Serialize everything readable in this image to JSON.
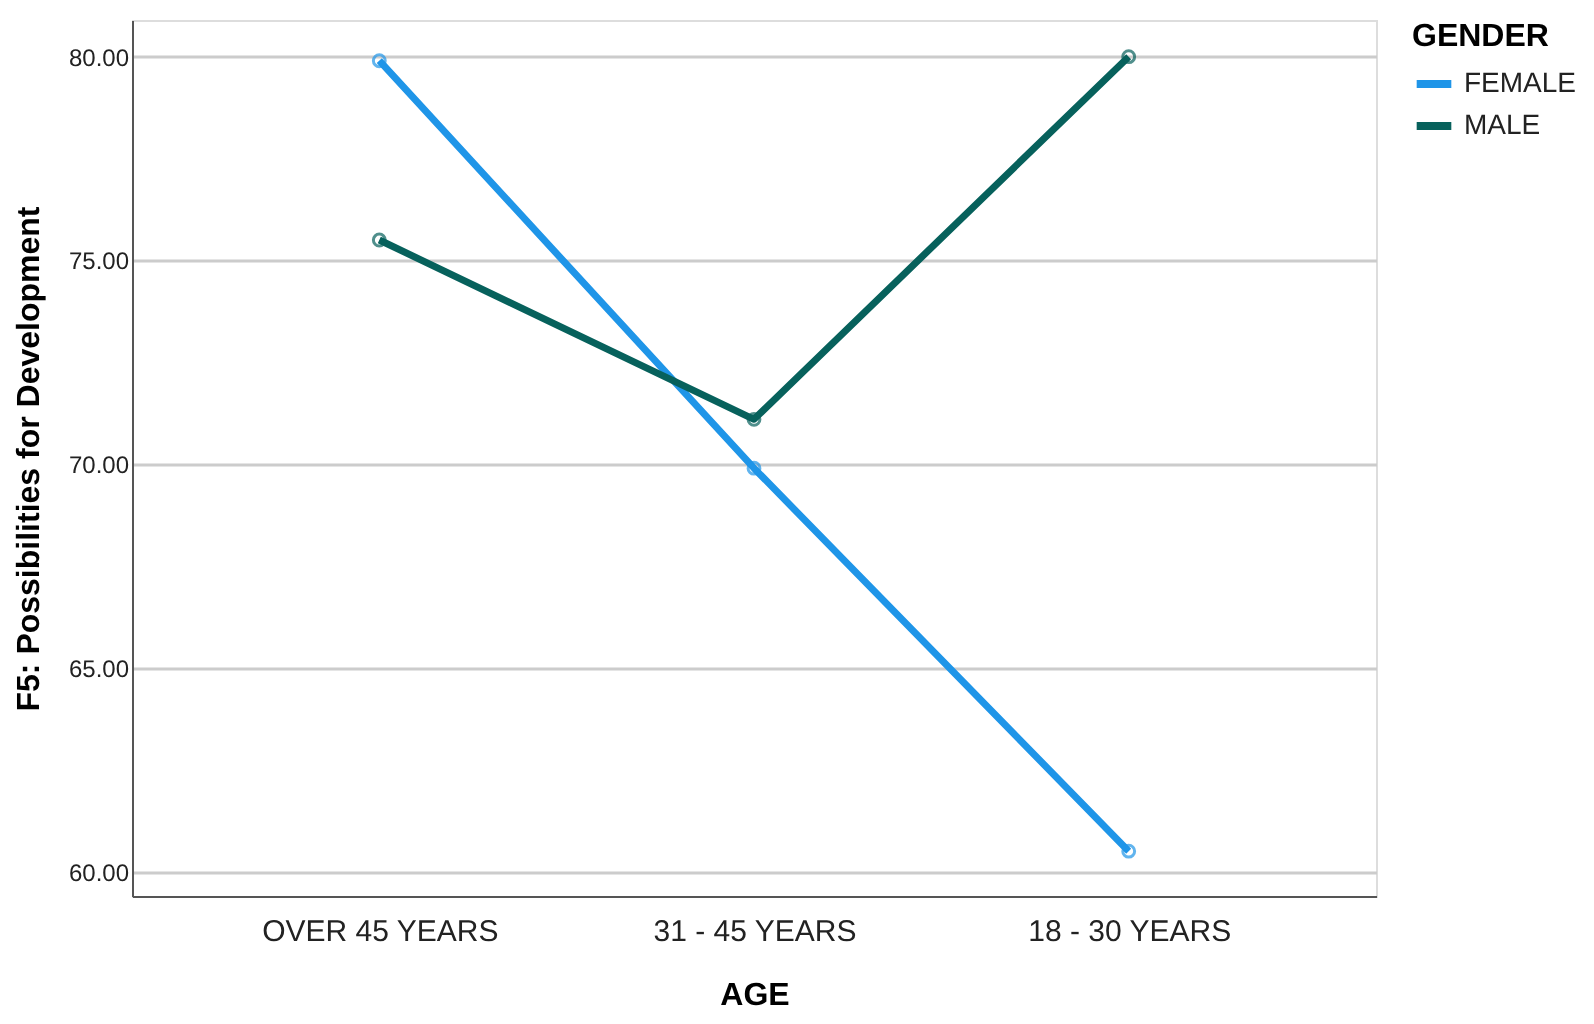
{
  "chart_data": {
    "type": "line",
    "xlabel": "AGE",
    "ylabel": "F5: Possibilities for Development",
    "legend_title": "GENDER",
    "categories": [
      "OVER 45 YEARS",
      "31 - 45 YEARS",
      "18 - 30 YEARS"
    ],
    "series": [
      {
        "name": "FEMALE",
        "color": "#1f95e8",
        "values": [
          79.9,
          69.9,
          60.5
        ]
      },
      {
        "name": "MALE",
        "color": "#07615c",
        "values": [
          75.5,
          71.1,
          80.0
        ]
      }
    ],
    "ylim": [
      59.4,
      80.9
    ],
    "yticks": [
      {
        "value": 60,
        "label": "60.00"
      },
      {
        "value": 65,
        "label": "65.00"
      },
      {
        "value": 70,
        "label": "70.00"
      },
      {
        "value": 75,
        "label": "75.00"
      },
      {
        "value": 80,
        "label": "80.00"
      }
    ],
    "grid": "y",
    "legend": "top right",
    "marker": "circle",
    "line_style": "solid"
  }
}
